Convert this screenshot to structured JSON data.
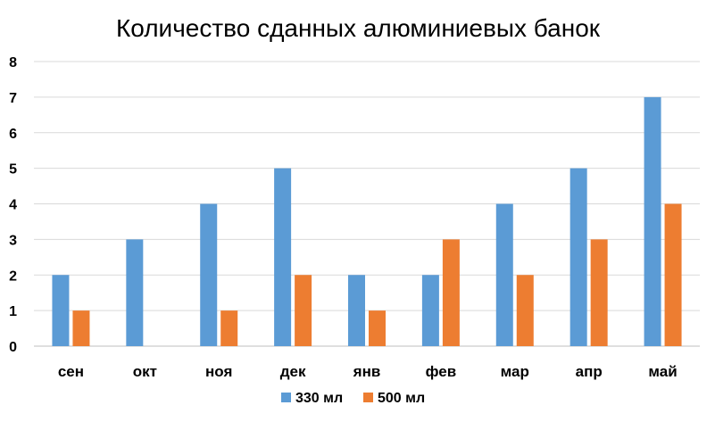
{
  "chart_data": {
    "type": "bar",
    "title": "Количество сданных алюминиевых банок",
    "xlabel": "",
    "ylabel": "",
    "categories": [
      "сен",
      "окт",
      "ноя",
      "дек",
      "янв",
      "фев",
      "мар",
      "апр",
      "май"
    ],
    "series": [
      {
        "name": "330 мл",
        "color": "#5b9bd5",
        "values": [
          2,
          3,
          4,
          5,
          2,
          2,
          4,
          5,
          7
        ]
      },
      {
        "name": "500 мл",
        "color": "#ed7d31",
        "values": [
          1,
          0,
          1,
          2,
          1,
          3,
          2,
          3,
          4
        ]
      }
    ],
    "ylim": [
      0,
      8
    ],
    "yticks": [
      0,
      1,
      2,
      3,
      4,
      5,
      6,
      7,
      8
    ],
    "grid": true,
    "legend": "bottom"
  }
}
